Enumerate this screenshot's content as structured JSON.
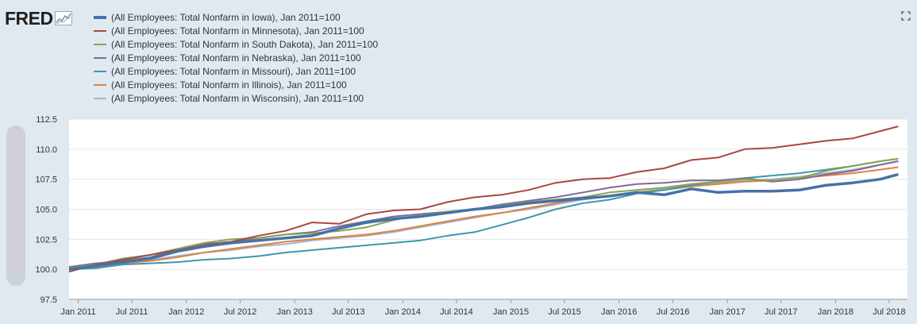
{
  "header": {
    "logo_text": "FRED",
    "logo_icon": "fred-graph-icon",
    "expand_icon": "fullscreen-icon"
  },
  "chart_data": {
    "type": "line",
    "title": "",
    "xlabel": "",
    "ylabel": "",
    "ylim": [
      97.5,
      112.5
    ],
    "xlim": [
      "2010-12-01",
      "2018-09-01"
    ],
    "yticks": [
      "97.5",
      "100.0",
      "102.5",
      "105.0",
      "107.5",
      "110.0",
      "112.5"
    ],
    "xticks": [
      {
        "label": "Jan 2011",
        "date": "2011-01-01"
      },
      {
        "label": "Jul 2011",
        "date": "2011-07-01"
      },
      {
        "label": "Jan 2012",
        "date": "2012-01-01"
      },
      {
        "label": "Jul 2012",
        "date": "2012-07-01"
      },
      {
        "label": "Jan 2013",
        "date": "2013-01-01"
      },
      {
        "label": "Jul 2013",
        "date": "2013-07-01"
      },
      {
        "label": "Jan 2014",
        "date": "2014-01-01"
      },
      {
        "label": "Jul 2014",
        "date": "2014-07-01"
      },
      {
        "label": "Jan 2015",
        "date": "2015-01-01"
      },
      {
        "label": "Jul 2015",
        "date": "2015-07-01"
      },
      {
        "label": "Jan 2016",
        "date": "2016-01-01"
      },
      {
        "label": "Jul 2016",
        "date": "2016-07-01"
      },
      {
        "label": "Jan 2017",
        "date": "2017-01-01"
      },
      {
        "label": "Jul 2017",
        "date": "2017-07-01"
      },
      {
        "label": "Jan 2018",
        "date": "2018-01-01"
      },
      {
        "label": "Jul 2018",
        "date": "2018-07-01"
      }
    ],
    "grid": true,
    "legend_position": "top-left",
    "series": [
      {
        "name": "(All Employees: Total Nonfarm in Iowa), Jan 2011=100",
        "color": "#4572a7",
        "emphasis": "thick",
        "points": [
          [
            "2010-12-01",
            100.0
          ],
          [
            "2011-03-01",
            100.3
          ],
          [
            "2011-06-01",
            100.6
          ],
          [
            "2011-09-01",
            100.9
          ],
          [
            "2011-12-01",
            101.5
          ],
          [
            "2012-03-01",
            101.9
          ],
          [
            "2012-06-01",
            102.2
          ],
          [
            "2012-09-01",
            102.4
          ],
          [
            "2012-12-01",
            102.6
          ],
          [
            "2013-03-01",
            102.8
          ],
          [
            "2013-06-01",
            103.4
          ],
          [
            "2013-09-01",
            103.9
          ],
          [
            "2013-12-01",
            104.2
          ],
          [
            "2014-03-01",
            104.4
          ],
          [
            "2014-06-01",
            104.7
          ],
          [
            "2014-09-01",
            105.0
          ],
          [
            "2014-12-01",
            105.2
          ],
          [
            "2015-03-01",
            105.5
          ],
          [
            "2015-06-01",
            105.7
          ],
          [
            "2015-09-01",
            105.9
          ],
          [
            "2015-12-01",
            106.1
          ],
          [
            "2016-03-01",
            106.4
          ],
          [
            "2016-06-01",
            106.2
          ],
          [
            "2016-09-01",
            106.7
          ],
          [
            "2016-12-01",
            106.4
          ],
          [
            "2017-03-01",
            106.5
          ],
          [
            "2017-06-01",
            106.5
          ],
          [
            "2017-09-01",
            106.6
          ],
          [
            "2017-12-01",
            107.0
          ],
          [
            "2018-03-01",
            107.2
          ],
          [
            "2018-06-01",
            107.5
          ],
          [
            "2018-08-01",
            107.9
          ]
        ]
      },
      {
        "name": "(All Employees: Total Nonfarm in Minnesota), Jan 2011=100",
        "color": "#aa4643",
        "points": [
          [
            "2010-12-01",
            99.8
          ],
          [
            "2011-03-01",
            100.4
          ],
          [
            "2011-06-01",
            100.8
          ],
          [
            "2011-09-01",
            101.2
          ],
          [
            "2011-12-01",
            101.6
          ],
          [
            "2012-03-01",
            102.0
          ],
          [
            "2012-06-01",
            102.3
          ],
          [
            "2012-09-01",
            102.8
          ],
          [
            "2012-12-01",
            103.2
          ],
          [
            "2013-03-01",
            103.9
          ],
          [
            "2013-06-01",
            103.8
          ],
          [
            "2013-09-01",
            104.6
          ],
          [
            "2013-12-01",
            104.9
          ],
          [
            "2014-03-01",
            105.0
          ],
          [
            "2014-06-01",
            105.6
          ],
          [
            "2014-09-01",
            106.0
          ],
          [
            "2014-12-01",
            106.2
          ],
          [
            "2015-03-01",
            106.6
          ],
          [
            "2015-06-01",
            107.2
          ],
          [
            "2015-09-01",
            107.5
          ],
          [
            "2015-12-01",
            107.6
          ],
          [
            "2016-03-01",
            108.1
          ],
          [
            "2016-06-01",
            108.4
          ],
          [
            "2016-09-01",
            109.1
          ],
          [
            "2016-12-01",
            109.3
          ],
          [
            "2017-03-01",
            110.0
          ],
          [
            "2017-06-01",
            110.1
          ],
          [
            "2017-09-01",
            110.4
          ],
          [
            "2017-12-01",
            110.7
          ],
          [
            "2018-03-01",
            110.9
          ],
          [
            "2018-06-01",
            111.5
          ],
          [
            "2018-08-01",
            111.9
          ]
        ]
      },
      {
        "name": "(All Employees: Total Nonfarm in South Dakota), Jan 2011=100",
        "color": "#89a54e",
        "points": [
          [
            "2010-12-01",
            100.1
          ],
          [
            "2011-03-01",
            100.4
          ],
          [
            "2011-06-01",
            100.9
          ],
          [
            "2011-09-01",
            101.2
          ],
          [
            "2011-12-01",
            101.7
          ],
          [
            "2012-03-01",
            102.2
          ],
          [
            "2012-06-01",
            102.5
          ],
          [
            "2012-09-01",
            102.6
          ],
          [
            "2012-12-01",
            102.9
          ],
          [
            "2013-03-01",
            103.0
          ],
          [
            "2013-06-01",
            103.2
          ],
          [
            "2013-09-01",
            103.5
          ],
          [
            "2013-12-01",
            104.1
          ],
          [
            "2014-03-01",
            104.5
          ],
          [
            "2014-06-01",
            104.8
          ],
          [
            "2014-09-01",
            105.0
          ],
          [
            "2014-12-01",
            105.3
          ],
          [
            "2015-03-01",
            105.6
          ],
          [
            "2015-06-01",
            105.8
          ],
          [
            "2015-09-01",
            106.0
          ],
          [
            "2015-12-01",
            106.4
          ],
          [
            "2016-03-01",
            106.6
          ],
          [
            "2016-06-01",
            106.8
          ],
          [
            "2016-09-01",
            107.1
          ],
          [
            "2016-12-01",
            107.3
          ],
          [
            "2017-03-01",
            107.5
          ],
          [
            "2017-06-01",
            107.4
          ],
          [
            "2017-09-01",
            107.6
          ],
          [
            "2017-12-01",
            108.2
          ],
          [
            "2018-03-01",
            108.6
          ],
          [
            "2018-06-01",
            109.0
          ],
          [
            "2018-08-01",
            109.2
          ]
        ]
      },
      {
        "name": "(All Employees: Total Nonfarm in Nebraska), Jan 2011=100",
        "color": "#80699b",
        "points": [
          [
            "2010-12-01",
            100.2
          ],
          [
            "2011-03-01",
            100.5
          ],
          [
            "2011-06-01",
            100.7
          ],
          [
            "2011-09-01",
            101.0
          ],
          [
            "2011-12-01",
            101.6
          ],
          [
            "2012-03-01",
            102.1
          ],
          [
            "2012-06-01",
            102.3
          ],
          [
            "2012-09-01",
            102.6
          ],
          [
            "2012-12-01",
            102.9
          ],
          [
            "2013-03-01",
            103.1
          ],
          [
            "2013-06-01",
            103.6
          ],
          [
            "2013-09-01",
            104.0
          ],
          [
            "2013-12-01",
            104.4
          ],
          [
            "2014-03-01",
            104.6
          ],
          [
            "2014-06-01",
            104.8
          ],
          [
            "2014-09-01",
            105.0
          ],
          [
            "2014-12-01",
            105.4
          ],
          [
            "2015-03-01",
            105.7
          ],
          [
            "2015-06-01",
            106.0
          ],
          [
            "2015-09-01",
            106.4
          ],
          [
            "2015-12-01",
            106.8
          ],
          [
            "2016-03-01",
            107.1
          ],
          [
            "2016-06-01",
            107.2
          ],
          [
            "2016-09-01",
            107.4
          ],
          [
            "2016-12-01",
            107.4
          ],
          [
            "2017-03-01",
            107.6
          ],
          [
            "2017-06-01",
            107.3
          ],
          [
            "2017-09-01",
            107.5
          ],
          [
            "2017-12-01",
            107.9
          ],
          [
            "2018-03-01",
            108.2
          ],
          [
            "2018-06-01",
            108.7
          ],
          [
            "2018-08-01",
            109.0
          ]
        ]
      },
      {
        "name": "(All Employees: Total Nonfarm in Missouri), Jan 2011=100",
        "color": "#3d96ae",
        "points": [
          [
            "2010-12-01",
            100.0
          ],
          [
            "2011-03-01",
            100.1
          ],
          [
            "2011-06-01",
            100.4
          ],
          [
            "2011-09-01",
            100.5
          ],
          [
            "2011-12-01",
            100.6
          ],
          [
            "2012-03-01",
            100.8
          ],
          [
            "2012-06-01",
            100.9
          ],
          [
            "2012-09-01",
            101.1
          ],
          [
            "2012-12-01",
            101.4
          ],
          [
            "2013-03-01",
            101.6
          ],
          [
            "2013-06-01",
            101.8
          ],
          [
            "2013-09-01",
            102.0
          ],
          [
            "2013-12-01",
            102.2
          ],
          [
            "2014-03-01",
            102.4
          ],
          [
            "2014-06-01",
            102.8
          ],
          [
            "2014-09-01",
            103.1
          ],
          [
            "2014-12-01",
            103.7
          ],
          [
            "2015-03-01",
            104.3
          ],
          [
            "2015-06-01",
            105.0
          ],
          [
            "2015-09-01",
            105.5
          ],
          [
            "2015-12-01",
            105.8
          ],
          [
            "2016-03-01",
            106.3
          ],
          [
            "2016-06-01",
            106.6
          ],
          [
            "2016-09-01",
            107.0
          ],
          [
            "2016-12-01",
            107.3
          ],
          [
            "2017-03-01",
            107.6
          ],
          [
            "2017-06-01",
            107.8
          ],
          [
            "2017-09-01",
            108.0
          ],
          [
            "2017-12-01",
            108.3
          ],
          [
            "2018-03-01",
            108.6
          ],
          [
            "2018-06-01",
            109.0
          ],
          [
            "2018-08-01",
            109.2
          ]
        ]
      },
      {
        "name": "(All Employees: Total Nonfarm in Illinois), Jan 2011=100",
        "color": "#db843d",
        "points": [
          [
            "2010-12-01",
            100.0
          ],
          [
            "2011-03-01",
            100.2
          ],
          [
            "2011-06-01",
            100.5
          ],
          [
            "2011-09-01",
            100.7
          ],
          [
            "2011-12-01",
            101.0
          ],
          [
            "2012-03-01",
            101.4
          ],
          [
            "2012-06-01",
            101.7
          ],
          [
            "2012-09-01",
            102.0
          ],
          [
            "2012-12-01",
            102.3
          ],
          [
            "2013-03-01",
            102.5
          ],
          [
            "2013-06-01",
            102.7
          ],
          [
            "2013-09-01",
            102.9
          ],
          [
            "2013-12-01",
            103.2
          ],
          [
            "2014-03-01",
            103.6
          ],
          [
            "2014-06-01",
            104.0
          ],
          [
            "2014-09-01",
            104.4
          ],
          [
            "2014-12-01",
            104.7
          ],
          [
            "2015-03-01",
            105.1
          ],
          [
            "2015-06-01",
            105.5
          ],
          [
            "2015-09-01",
            105.9
          ],
          [
            "2015-12-01",
            106.1
          ],
          [
            "2016-03-01",
            106.4
          ],
          [
            "2016-06-01",
            106.6
          ],
          [
            "2016-09-01",
            106.9
          ],
          [
            "2016-12-01",
            107.1
          ],
          [
            "2017-03-01",
            107.3
          ],
          [
            "2017-06-01",
            107.4
          ],
          [
            "2017-09-01",
            107.6
          ],
          [
            "2017-12-01",
            107.8
          ],
          [
            "2018-03-01",
            108.0
          ],
          [
            "2018-06-01",
            108.3
          ],
          [
            "2018-08-01",
            108.5
          ]
        ]
      },
      {
        "name": "(All Employees: Total Nonfarm in Wisconsin), Jan 2011=100",
        "color": "#a4b3d4",
        "points": [
          [
            "2010-12-01",
            100.1
          ],
          [
            "2011-03-01",
            100.3
          ],
          [
            "2011-06-01",
            100.6
          ],
          [
            "2011-09-01",
            100.8
          ],
          [
            "2011-12-01",
            101.1
          ],
          [
            "2012-03-01",
            101.4
          ],
          [
            "2012-06-01",
            101.6
          ],
          [
            "2012-09-01",
            101.9
          ],
          [
            "2012-12-01",
            102.1
          ],
          [
            "2013-03-01",
            102.4
          ],
          [
            "2013-06-01",
            102.6
          ],
          [
            "2013-09-01",
            102.8
          ],
          [
            "2013-12-01",
            103.1
          ],
          [
            "2014-03-01",
            103.5
          ],
          [
            "2014-06-01",
            103.9
          ],
          [
            "2014-09-01",
            104.3
          ],
          [
            "2014-12-01",
            104.7
          ],
          [
            "2015-03-01",
            105.0
          ],
          [
            "2015-06-01",
            105.4
          ],
          [
            "2015-09-01",
            105.8
          ],
          [
            "2015-12-01",
            106.1
          ],
          [
            "2016-03-01",
            106.4
          ],
          [
            "2016-06-01",
            106.7
          ],
          [
            "2016-09-01",
            107.0
          ],
          [
            "2016-12-01",
            107.2
          ],
          [
            "2017-03-01",
            107.4
          ],
          [
            "2017-06-01",
            107.5
          ],
          [
            "2017-09-01",
            107.7
          ],
          [
            "2017-12-01",
            108.0
          ],
          [
            "2018-03-01",
            108.3
          ],
          [
            "2018-06-01",
            108.7
          ],
          [
            "2018-08-01",
            109.0
          ]
        ]
      }
    ]
  }
}
